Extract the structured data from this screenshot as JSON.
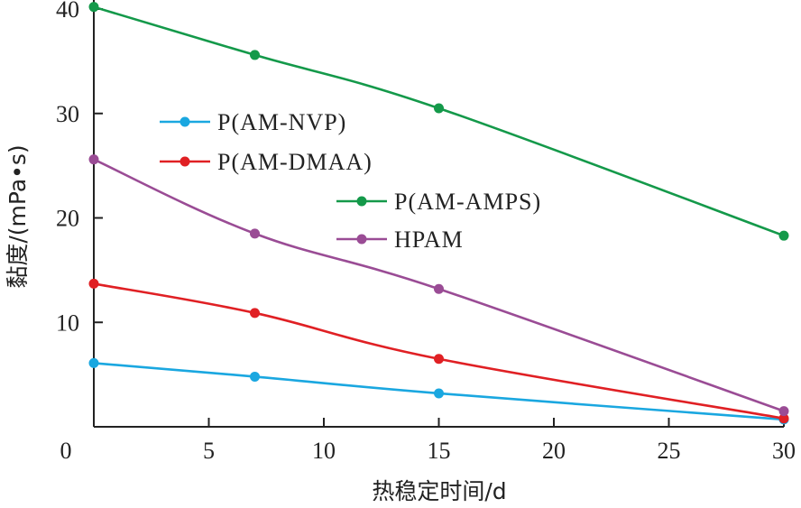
{
  "chart_data": {
    "type": "line",
    "xlabel": "热稳定时间/d",
    "ylabel": "黏度/(mPa•s)",
    "xlim": [
      0,
      30
    ],
    "ylim": [
      0,
      40
    ],
    "xticks": [
      "0",
      "5",
      "10",
      "15",
      "20",
      "25",
      "30"
    ],
    "yticks": [
      "10",
      "20",
      "30",
      "40"
    ],
    "grid": false,
    "x": [
      0,
      7,
      15,
      30
    ],
    "series": [
      {
        "name": "P(AM-NVP)",
        "color": "#1aa7e0",
        "values": [
          6.1,
          4.8,
          3.2,
          0.7
        ]
      },
      {
        "name": "P(AM-DMAA)",
        "color": "#e02024",
        "values": [
          13.7,
          10.9,
          6.5,
          0.8
        ]
      },
      {
        "name": "P(AM-AMPS)",
        "color": "#14994a",
        "values": [
          40.2,
          35.6,
          30.5,
          18.3
        ]
      },
      {
        "name": "HPAM",
        "color": "#9a4c95",
        "values": [
          25.6,
          18.5,
          13.2,
          1.5
        ]
      }
    ]
  }
}
